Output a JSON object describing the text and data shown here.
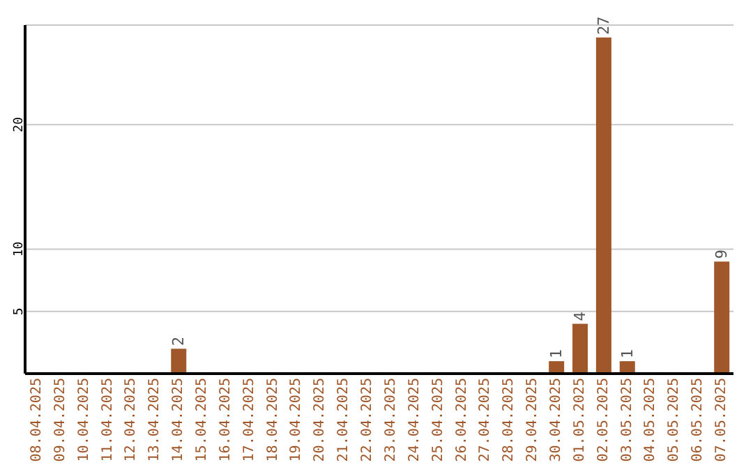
{
  "chart_data": {
    "type": "bar",
    "categories": [
      "08.04.2025",
      "09.04.2025",
      "10.04.2025",
      "11.04.2025",
      "12.04.2025",
      "13.04.2025",
      "14.04.2025",
      "15.04.2025",
      "16.04.2025",
      "17.04.2025",
      "18.04.2025",
      "19.04.2025",
      "20.04.2025",
      "21.04.2025",
      "22.04.2025",
      "23.04.2025",
      "24.04.2025",
      "25.04.2025",
      "26.04.2025",
      "27.04.2025",
      "28.04.2025",
      "29.04.2025",
      "30.04.2025",
      "01.05.2025",
      "02.05.2025",
      "03.05.2025",
      "04.05.2025",
      "05.05.2025",
      "06.05.2025",
      "07.05.2025"
    ],
    "values": [
      0,
      0,
      0,
      0,
      0,
      0,
      2,
      0,
      0,
      0,
      0,
      0,
      0,
      0,
      0,
      0,
      0,
      0,
      0,
      0,
      0,
      0,
      1,
      4,
      27,
      1,
      0,
      0,
      0,
      9
    ],
    "value_labels": [
      null,
      null,
      null,
      null,
      null,
      null,
      "2",
      null,
      null,
      null,
      null,
      null,
      null,
      null,
      null,
      null,
      null,
      null,
      null,
      null,
      null,
      null,
      "1",
      "4",
      "27",
      "1",
      null,
      null,
      null,
      "9"
    ],
    "color": "#a0582a",
    "ylim": [
      0,
      28
    ],
    "yticks": [
      5,
      10,
      20
    ],
    "grid": "y"
  }
}
